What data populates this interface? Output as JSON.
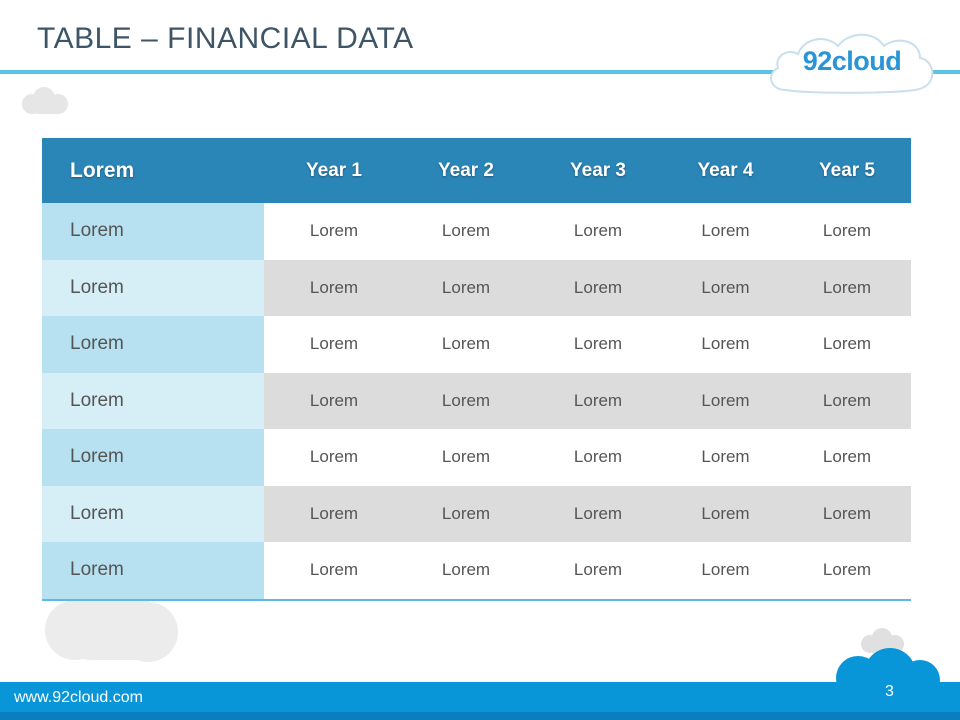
{
  "slide": {
    "title": "TABLE – FINANCIAL DATA",
    "logo_text": "92cloud",
    "footer_url": "www.92cloud.com",
    "page_number": "3"
  },
  "table": {
    "headers": [
      "Lorem",
      "Year 1",
      "Year 2",
      "Year 3",
      "Year 4",
      "Year 5"
    ],
    "rows": [
      [
        "Lorem",
        "Lorem",
        "Lorem",
        "Lorem",
        "Lorem",
        "Lorem"
      ],
      [
        "Lorem",
        "Lorem",
        "Lorem",
        "Lorem",
        "Lorem",
        "Lorem"
      ],
      [
        "Lorem",
        "Lorem",
        "Lorem",
        "Lorem",
        "Lorem",
        "Lorem"
      ],
      [
        "Lorem",
        "Lorem",
        "Lorem",
        "Lorem",
        "Lorem",
        "Lorem"
      ],
      [
        "Lorem",
        "Lorem",
        "Lorem",
        "Lorem",
        "Lorem",
        "Lorem"
      ],
      [
        "Lorem",
        "Lorem",
        "Lorem",
        "Lorem",
        "Lorem",
        "Lorem"
      ],
      [
        "Lorem",
        "Lorem",
        "Lorem",
        "Lorem",
        "Lorem",
        "Lorem"
      ]
    ]
  },
  "colors": {
    "title_text": "#3d5566",
    "accent_line": "#5cc3e6",
    "header_bg": "#2b86b8",
    "first_col_dark": "#b7e0f0",
    "first_col_light": "#d6eef6",
    "stripe_gray": "#dcdcdc",
    "footer_bar": "#0996d8",
    "logo_blue": "#2a95d6"
  },
  "icons": [
    "cloud-logo-icon",
    "cloud-decoration-icon"
  ]
}
